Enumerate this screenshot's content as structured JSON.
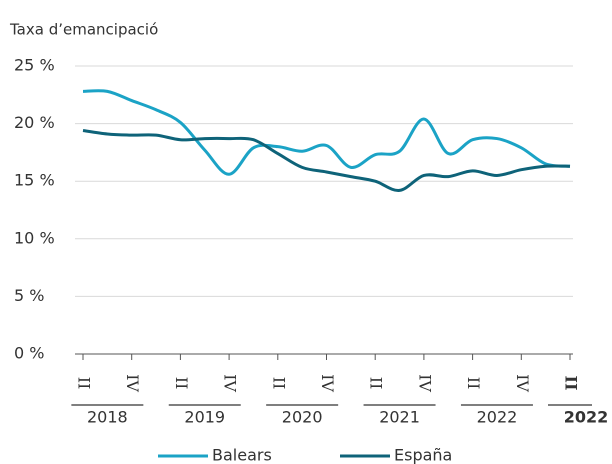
{
  "chart_data": {
    "type": "line",
    "title": "Taxa d’emancipació",
    "categories": [
      "II",
      null,
      "IV",
      null,
      "II",
      null,
      "IV",
      null,
      "II",
      null,
      "IV",
      null,
      "II",
      null,
      "IV",
      null,
      "II",
      null,
      "IV",
      null,
      "II"
    ],
    "years": [
      "2018",
      "2019",
      "2020",
      "2021",
      "2022",
      "2022"
    ],
    "series": [
      {
        "name": "Balears",
        "color": "#1ba3c6",
        "values": [
          22.8,
          22.8,
          22.0,
          21.2,
          20.1,
          17.7,
          15.6,
          17.9,
          18.0,
          17.6,
          18.1,
          16.2,
          17.3,
          17.6,
          20.4,
          17.4,
          18.6,
          18.7,
          17.9,
          16.5,
          16.3
        ]
      },
      {
        "name": "España",
        "color": "#0e6379",
        "values": [
          19.4,
          19.1,
          19.0,
          19.0,
          18.6,
          18.7,
          18.7,
          18.6,
          17.4,
          16.2,
          15.8,
          15.4,
          15.0,
          14.2,
          15.5,
          15.4,
          15.9,
          15.5,
          16.0,
          16.3,
          16.3
        ]
      }
    ],
    "ylim": [
      0,
      25
    ],
    "yticks": [
      {
        "value": 0,
        "label": "0 %"
      },
      {
        "value": 5,
        "label": "5 %"
      },
      {
        "value": 10,
        "label": "10 %"
      },
      {
        "value": 15,
        "label": "15 %"
      },
      {
        "value": 20,
        "label": "20 %"
      },
      {
        "value": 25,
        "label": "25 %"
      }
    ],
    "grid": true
  }
}
